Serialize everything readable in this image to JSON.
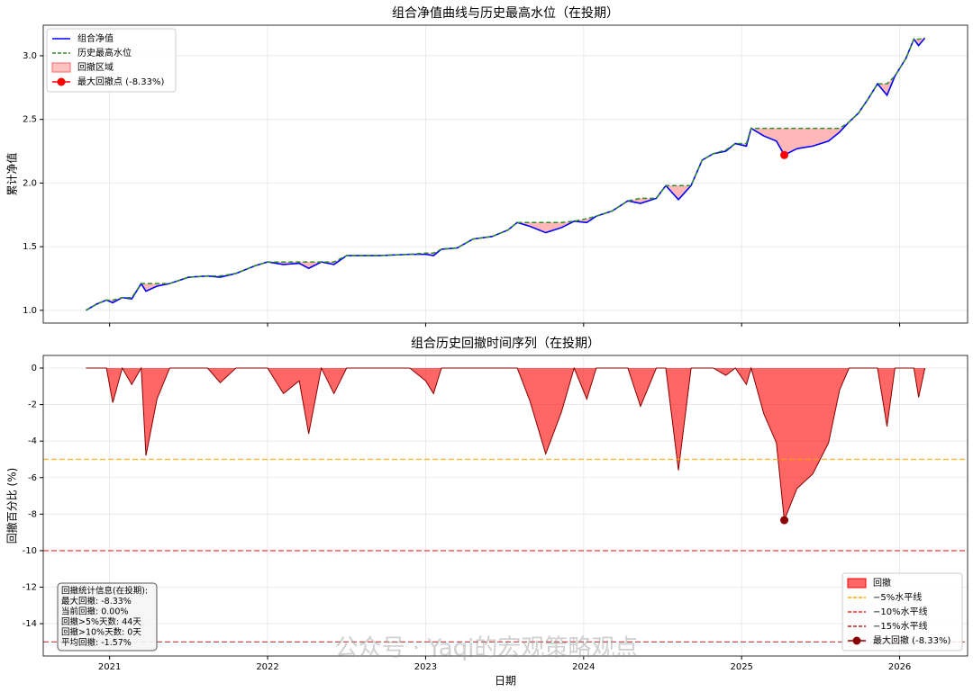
{
  "watermark": "公众号 · Yaqi的宏观策略观点",
  "chart_data": [
    {
      "type": "line",
      "title": "组合净值曲线与历史最高水位（在投期）",
      "ylabel": "累计净值",
      "x": [
        2020.85,
        2020.92,
        2020.98,
        2021.02,
        2021.08,
        2021.14,
        2021.2,
        2021.23,
        2021.3,
        2021.38,
        2021.5,
        2021.62,
        2021.7,
        2021.8,
        2021.92,
        2022.0,
        2022.1,
        2022.2,
        2022.26,
        2022.34,
        2022.42,
        2022.5,
        2022.7,
        2022.9,
        2023.0,
        2023.05,
        2023.1,
        2023.2,
        2023.3,
        2023.42,
        2023.52,
        2023.58,
        2023.66,
        2023.76,
        2023.86,
        2023.94,
        2024.02,
        2024.08,
        2024.18,
        2024.28,
        2024.36,
        2024.46,
        2024.52,
        2024.6,
        2024.68,
        2024.75,
        2024.82,
        2024.9,
        2024.96,
        2025.03,
        2025.06,
        2025.14,
        2025.22,
        2025.27,
        2025.35,
        2025.45,
        2025.55,
        2025.62,
        2025.68,
        2025.74,
        2025.8,
        2025.86,
        2025.92,
        2025.97,
        2026.04,
        2026.09,
        2026.12,
        2026.16
      ],
      "series": [
        {
          "name": "组合净值",
          "color": "#0000ff",
          "style": "solid",
          "values": [
            1.0,
            1.05,
            1.08,
            1.06,
            1.1,
            1.09,
            1.21,
            1.15,
            1.19,
            1.21,
            1.26,
            1.27,
            1.26,
            1.29,
            1.35,
            1.38,
            1.36,
            1.37,
            1.33,
            1.38,
            1.36,
            1.43,
            1.43,
            1.44,
            1.44,
            1.43,
            1.48,
            1.49,
            1.56,
            1.58,
            1.63,
            1.69,
            1.66,
            1.61,
            1.65,
            1.7,
            1.69,
            1.74,
            1.78,
            1.86,
            1.84,
            1.88,
            1.98,
            1.87,
            1.98,
            2.18,
            2.23,
            2.25,
            2.31,
            2.29,
            2.43,
            2.37,
            2.33,
            2.22,
            2.27,
            2.29,
            2.33,
            2.4,
            2.48,
            2.55,
            2.66,
            2.78,
            2.69,
            2.84,
            2.98,
            3.13,
            3.08,
            3.14
          ]
        },
        {
          "name": "历史最高水位",
          "color": "#2e8b2e",
          "style": "dashed",
          "values": [
            1.0,
            1.05,
            1.08,
            1.08,
            1.1,
            1.1,
            1.21,
            1.21,
            1.21,
            1.21,
            1.26,
            1.27,
            1.27,
            1.29,
            1.35,
            1.38,
            1.38,
            1.38,
            1.38,
            1.38,
            1.38,
            1.43,
            1.43,
            1.44,
            1.45,
            1.45,
            1.48,
            1.49,
            1.56,
            1.58,
            1.63,
            1.69,
            1.69,
            1.69,
            1.69,
            1.7,
            1.72,
            1.74,
            1.78,
            1.86,
            1.88,
            1.88,
            1.98,
            1.98,
            1.98,
            2.18,
            2.23,
            2.26,
            2.31,
            2.31,
            2.43,
            2.43,
            2.43,
            2.43,
            2.43,
            2.43,
            2.43,
            2.43,
            2.48,
            2.55,
            2.66,
            2.78,
            2.78,
            2.84,
            2.98,
            3.13,
            3.13,
            3.14
          ]
        }
      ],
      "fill": {
        "name": "回撤区域",
        "color": "#ff9999"
      },
      "marker": {
        "name": "最大回撤点 (-8.33%)",
        "x": 2025.27,
        "y": 2.22,
        "color": "#ff0000"
      },
      "xlim": [
        2020.58,
        2026.43
      ],
      "xticks": [
        2021,
        2022,
        2023,
        2024,
        2025,
        2026
      ],
      "ylim": [
        0.9,
        3.24
      ],
      "yticks": [
        {
          "value": 1,
          "label": "1.0"
        },
        1.5,
        {
          "value": 2,
          "label": "2.0"
        },
        2.5,
        {
          "value": 3,
          "label": "3.0"
        }
      ],
      "grid": true,
      "legend": "upper left"
    },
    {
      "type": "area",
      "title": "组合历史回撤时间序列（在投期）",
      "xlabel": "日期",
      "ylabel": "回撤百分比 (%)",
      "x": [
        2020.85,
        2020.92,
        2020.98,
        2021.02,
        2021.08,
        2021.14,
        2021.2,
        2021.23,
        2021.3,
        2021.38,
        2021.5,
        2021.62,
        2021.7,
        2021.8,
        2021.92,
        2022.0,
        2022.1,
        2022.2,
        2022.26,
        2022.34,
        2022.42,
        2022.5,
        2022.7,
        2022.9,
        2023.0,
        2023.05,
        2023.1,
        2023.2,
        2023.3,
        2023.42,
        2023.52,
        2023.58,
        2023.66,
        2023.76,
        2023.86,
        2023.94,
        2024.02,
        2024.08,
        2024.18,
        2024.28,
        2024.36,
        2024.46,
        2024.52,
        2024.6,
        2024.68,
        2024.75,
        2024.82,
        2024.9,
        2024.96,
        2025.03,
        2025.06,
        2025.14,
        2025.22,
        2025.27,
        2025.35,
        2025.45,
        2025.55,
        2025.62,
        2025.68,
        2025.74,
        2025.8,
        2025.86,
        2025.92,
        2025.97,
        2026.04,
        2026.09,
        2026.12,
        2026.16
      ],
      "series": [
        {
          "name": "回撤",
          "color": "#ff0000",
          "line_color": "#8b0000",
          "values": [
            0,
            0,
            0,
            -1.9,
            0,
            -0.9,
            0,
            -4.8,
            -1.7,
            0,
            0,
            0,
            -0.8,
            0,
            0,
            0,
            -1.4,
            -0.7,
            -3.6,
            0,
            -1.4,
            0,
            0,
            0,
            -0.7,
            -1.4,
            0,
            0,
            0,
            0,
            0,
            0,
            -1.8,
            -4.7,
            -2.4,
            0,
            -1.7,
            0,
            0,
            0,
            -2.1,
            0,
            0,
            -5.6,
            0,
            0,
            0,
            -0.4,
            0,
            -0.9,
            0,
            -2.5,
            -4.1,
            -8.33,
            -6.6,
            -5.8,
            -4.1,
            -1.2,
            0,
            0,
            0,
            0,
            -3.2,
            0,
            0,
            0,
            -1.6,
            0
          ]
        }
      ],
      "ref_lines": [
        {
          "name": "−5%水平线",
          "value": -5,
          "color": "#ffa500"
        },
        {
          "name": "−10%水平线",
          "value": -10,
          "color": "#ff2222"
        },
        {
          "name": "−15%水平线",
          "value": -15,
          "color": "#b22222"
        }
      ],
      "marker": {
        "name": "最大回撤 (-8.33%)",
        "x": 2025.27,
        "y": -8.33,
        "color": "#8b0000"
      },
      "stats_box": {
        "lines": [
          "回撤统计信息(在投期):",
          "最大回撤: -8.33%",
          "当前回撤: 0.00%",
          "回撤>5%天数: 44天",
          "回撤>10%天数: 0天",
          "平均回撤: -1.57%"
        ]
      },
      "xlim": [
        2020.58,
        2026.43
      ],
      "xticks": [
        2021,
        2022,
        2023,
        2024,
        2025,
        2026
      ],
      "ylim": [
        -15.77,
        0.69
      ],
      "yticks": [
        0,
        -2,
        -4,
        -6,
        -8,
        -10,
        -12,
        -14
      ],
      "grid": true,
      "legend": "lower right"
    }
  ]
}
